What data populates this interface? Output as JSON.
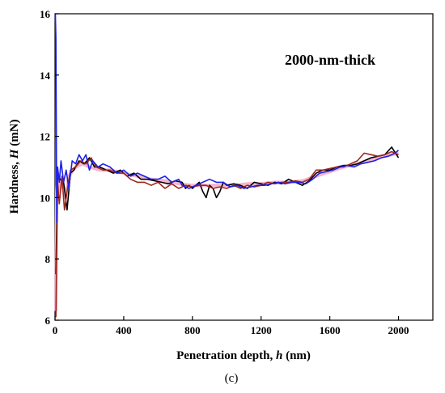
{
  "chart_data": {
    "type": "line",
    "title": "",
    "annotation": "2000-nm-thick",
    "panel_label": "(c)",
    "xlabel_prefix": "Penetration depth, ",
    "xlabel_var": "h",
    "xlabel_suffix": " (nm)",
    "ylabel_prefix": "Hardness, ",
    "ylabel_var": "H",
    "ylabel_suffix": " (mN)",
    "xlim": [
      0,
      2200
    ],
    "ylim": [
      6,
      16
    ],
    "xticks": [
      0,
      400,
      800,
      1200,
      1600,
      2000
    ],
    "yticks": [
      6,
      8,
      10,
      12,
      14,
      16
    ],
    "grid": false,
    "legend": "none",
    "series": [
      {
        "color": "#f4b6cf",
        "points": [
          [
            5,
            6.3
          ],
          [
            10,
            10.2
          ],
          [
            15,
            10.8
          ],
          [
            25,
            10.2
          ],
          [
            40,
            10.6
          ],
          [
            60,
            10.0
          ],
          [
            80,
            10.7
          ],
          [
            120,
            11.0
          ],
          [
            160,
            11.1
          ],
          [
            200,
            11.0
          ],
          [
            260,
            10.9
          ],
          [
            320,
            10.9
          ],
          [
            400,
            10.8
          ],
          [
            480,
            10.7
          ],
          [
            560,
            10.6
          ],
          [
            640,
            10.55
          ],
          [
            720,
            10.45
          ],
          [
            800,
            10.4
          ],
          [
            880,
            10.4
          ],
          [
            960,
            10.4
          ],
          [
            1040,
            10.4
          ],
          [
            1120,
            10.45
          ],
          [
            1200,
            10.45
          ],
          [
            1280,
            10.5
          ],
          [
            1360,
            10.5
          ],
          [
            1440,
            10.55
          ],
          [
            1520,
            10.7
          ],
          [
            1600,
            10.85
          ],
          [
            1680,
            11.0
          ],
          [
            1760,
            11.1
          ],
          [
            1840,
            11.25
          ],
          [
            1920,
            11.35
          ],
          [
            2000,
            11.45
          ]
        ]
      },
      {
        "color": "#000000",
        "points": [
          [
            5,
            7.5
          ],
          [
            15,
            10.8
          ],
          [
            30,
            10.6
          ],
          [
            50,
            10.5
          ],
          [
            70,
            9.6
          ],
          [
            90,
            10.8
          ],
          [
            110,
            10.9
          ],
          [
            140,
            11.2
          ],
          [
            170,
            11.1
          ],
          [
            200,
            11.3
          ],
          [
            230,
            11.0
          ],
          [
            260,
            11.0
          ],
          [
            300,
            10.9
          ],
          [
            340,
            10.8
          ],
          [
            380,
            10.9
          ],
          [
            420,
            10.7
          ],
          [
            460,
            10.8
          ],
          [
            500,
            10.6
          ],
          [
            540,
            10.6
          ],
          [
            580,
            10.55
          ],
          [
            620,
            10.5
          ],
          [
            660,
            10.45
          ],
          [
            700,
            10.55
          ],
          [
            740,
            10.5
          ],
          [
            760,
            10.3
          ],
          [
            780,
            10.4
          ],
          [
            800,
            10.3
          ],
          [
            840,
            10.5
          ],
          [
            860,
            10.2
          ],
          [
            880,
            10.0
          ],
          [
            900,
            10.4
          ],
          [
            920,
            10.3
          ],
          [
            940,
            10.0
          ],
          [
            960,
            10.2
          ],
          [
            980,
            10.5
          ],
          [
            1000,
            10.4
          ],
          [
            1040,
            10.45
          ],
          [
            1080,
            10.4
          ],
          [
            1120,
            10.3
          ],
          [
            1160,
            10.5
          ],
          [
            1200,
            10.45
          ],
          [
            1240,
            10.4
          ],
          [
            1280,
            10.5
          ],
          [
            1320,
            10.45
          ],
          [
            1360,
            10.6
          ],
          [
            1400,
            10.5
          ],
          [
            1440,
            10.4
          ],
          [
            1480,
            10.55
          ],
          [
            1520,
            10.8
          ],
          [
            1560,
            10.9
          ],
          [
            1600,
            10.9
          ],
          [
            1640,
            11.0
          ],
          [
            1680,
            11.05
          ],
          [
            1720,
            11.05
          ],
          [
            1760,
            11.1
          ],
          [
            1800,
            11.2
          ],
          [
            1840,
            11.3
          ],
          [
            1880,
            11.35
          ],
          [
            1920,
            11.4
          ],
          [
            1960,
            11.65
          ],
          [
            2000,
            11.3
          ]
        ]
      },
      {
        "color": "#a0251c",
        "points": [
          [
            5,
            6.1
          ],
          [
            10,
            8.5
          ],
          [
            15,
            10.5
          ],
          [
            25,
            9.8
          ],
          [
            40,
            10.7
          ],
          [
            55,
            9.6
          ],
          [
            70,
            10.2
          ],
          [
            90,
            10.9
          ],
          [
            120,
            11.0
          ],
          [
            150,
            11.2
          ],
          [
            180,
            11.1
          ],
          [
            210,
            11.3
          ],
          [
            240,
            11.0
          ],
          [
            280,
            10.9
          ],
          [
            320,
            10.9
          ],
          [
            360,
            10.8
          ],
          [
            400,
            10.8
          ],
          [
            440,
            10.6
          ],
          [
            480,
            10.5
          ],
          [
            520,
            10.5
          ],
          [
            560,
            10.4
          ],
          [
            600,
            10.5
          ],
          [
            640,
            10.3
          ],
          [
            680,
            10.45
          ],
          [
            720,
            10.3
          ],
          [
            760,
            10.4
          ],
          [
            800,
            10.35
          ],
          [
            840,
            10.4
          ],
          [
            880,
            10.4
          ],
          [
            920,
            10.3
          ],
          [
            960,
            10.35
          ],
          [
            1000,
            10.3
          ],
          [
            1040,
            10.4
          ],
          [
            1080,
            10.3
          ],
          [
            1120,
            10.4
          ],
          [
            1160,
            10.35
          ],
          [
            1200,
            10.4
          ],
          [
            1240,
            10.5
          ],
          [
            1280,
            10.45
          ],
          [
            1320,
            10.5
          ],
          [
            1360,
            10.5
          ],
          [
            1400,
            10.55
          ],
          [
            1440,
            10.5
          ],
          [
            1480,
            10.6
          ],
          [
            1520,
            10.9
          ],
          [
            1560,
            10.9
          ],
          [
            1600,
            10.95
          ],
          [
            1640,
            11.0
          ],
          [
            1680,
            11.0
          ],
          [
            1720,
            11.1
          ],
          [
            1760,
            11.2
          ],
          [
            1800,
            11.45
          ],
          [
            1840,
            11.4
          ],
          [
            1880,
            11.35
          ],
          [
            1920,
            11.4
          ],
          [
            1960,
            11.5
          ],
          [
            2000,
            11.4
          ]
        ]
      },
      {
        "color": "#1d21e6",
        "points": [
          [
            2,
            16.0
          ],
          [
            5,
            15.2
          ],
          [
            10,
            9.2
          ],
          [
            15,
            11.0
          ],
          [
            25,
            10.5
          ],
          [
            35,
            11.2
          ],
          [
            50,
            10.5
          ],
          [
            65,
            10.9
          ],
          [
            80,
            10.3
          ],
          [
            100,
            11.2
          ],
          [
            120,
            11.1
          ],
          [
            140,
            11.4
          ],
          [
            160,
            11.2
          ],
          [
            180,
            11.4
          ],
          [
            200,
            10.9
          ],
          [
            220,
            11.2
          ],
          [
            250,
            11.0
          ],
          [
            280,
            11.1
          ],
          [
            320,
            11.0
          ],
          [
            360,
            10.8
          ],
          [
            400,
            10.9
          ],
          [
            440,
            10.7
          ],
          [
            480,
            10.8
          ],
          [
            520,
            10.7
          ],
          [
            560,
            10.6
          ],
          [
            600,
            10.6
          ],
          [
            640,
            10.7
          ],
          [
            680,
            10.5
          ],
          [
            720,
            10.6
          ],
          [
            740,
            10.4
          ],
          [
            780,
            10.3
          ],
          [
            820,
            10.4
          ],
          [
            860,
            10.5
          ],
          [
            900,
            10.6
          ],
          [
            940,
            10.5
          ],
          [
            980,
            10.5
          ],
          [
            1020,
            10.35
          ],
          [
            1060,
            10.4
          ],
          [
            1100,
            10.3
          ],
          [
            1140,
            10.35
          ],
          [
            1180,
            10.4
          ],
          [
            1220,
            10.4
          ],
          [
            1260,
            10.45
          ],
          [
            1300,
            10.5
          ],
          [
            1340,
            10.45
          ],
          [
            1380,
            10.5
          ],
          [
            1420,
            10.5
          ],
          [
            1460,
            10.45
          ],
          [
            1500,
            10.6
          ],
          [
            1540,
            10.8
          ],
          [
            1580,
            10.85
          ],
          [
            1620,
            10.9
          ],
          [
            1660,
            11.0
          ],
          [
            1700,
            11.05
          ],
          [
            1740,
            11.0
          ],
          [
            1780,
            11.1
          ],
          [
            1820,
            11.15
          ],
          [
            1860,
            11.2
          ],
          [
            1900,
            11.3
          ],
          [
            1940,
            11.35
          ],
          [
            1980,
            11.45
          ],
          [
            2000,
            11.55
          ]
        ]
      }
    ]
  }
}
